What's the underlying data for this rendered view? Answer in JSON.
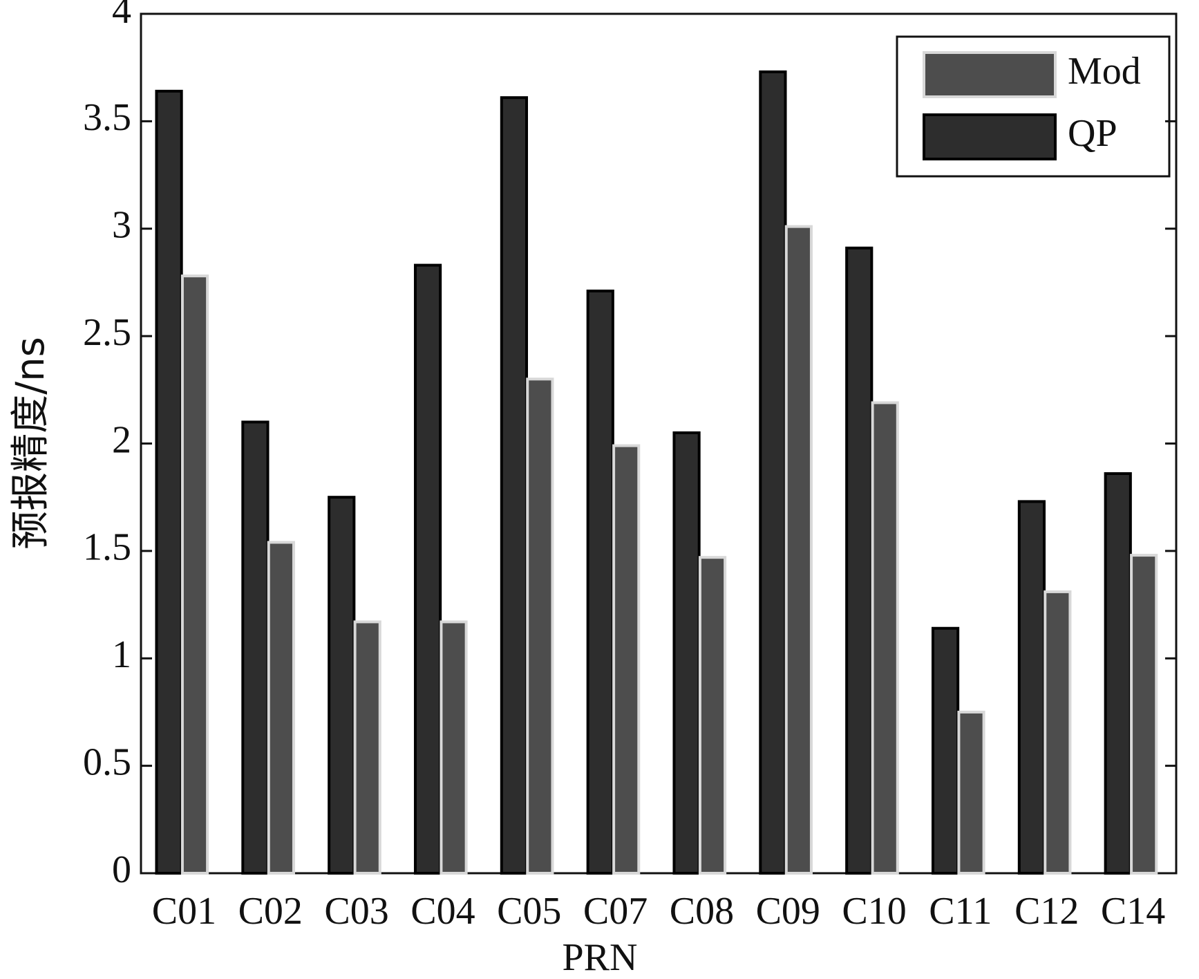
{
  "chart_data": {
    "type": "bar",
    "x_label": "PRN",
    "y_label": "预报精度/ns",
    "categories": [
      "C01",
      "C02",
      "C03",
      "C04",
      "C05",
      "C07",
      "C08",
      "C09",
      "C10",
      "C11",
      "C12",
      "C14"
    ],
    "series": [
      {
        "name": "QP",
        "color": "#2d2d2d",
        "values": [
          3.64,
          2.1,
          1.75,
          2.83,
          3.61,
          2.71,
          2.05,
          3.73,
          2.91,
          1.14,
          1.73,
          1.86
        ]
      },
      {
        "name": "Mod",
        "color": "#4d4d4d",
        "values": [
          2.78,
          1.54,
          1.17,
          1.17,
          2.3,
          1.99,
          1.47,
          3.01,
          2.19,
          0.75,
          1.31,
          1.48
        ]
      }
    ],
    "ylim": [
      0,
      4
    ],
    "yticks": [
      0,
      0.5,
      1,
      1.5,
      2,
      2.5,
      3,
      3.5,
      4
    ],
    "legend": "upper right"
  }
}
